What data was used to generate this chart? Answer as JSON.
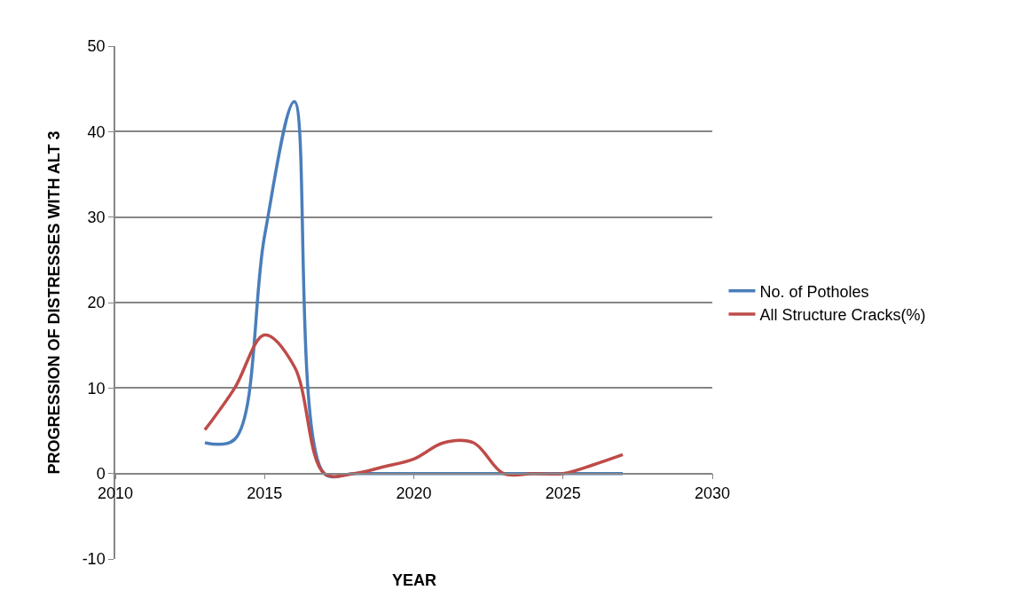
{
  "chart_data": {
    "type": "line",
    "xlabel": "YEAR",
    "ylabel": "PROGRESSION OF DISTRESSES WITH ALT 3",
    "x": [
      2013,
      2014,
      2015,
      2016,
      2017,
      2018,
      2019,
      2020,
      2021,
      2022,
      2023,
      2024,
      2025,
      2026,
      2027
    ],
    "series": [
      {
        "name": "No. of Potholes",
        "color": "#4a7ebb",
        "values": [
          3.6,
          4.0,
          27.8,
          43.5,
          0,
          0,
          0,
          0,
          0,
          0,
          0,
          0,
          0,
          0,
          0
        ]
      },
      {
        "name": "All Structure Cracks(%)",
        "color": "#be4b48",
        "values": [
          5.1,
          10.0,
          16.2,
          12.5,
          0,
          0,
          0.8,
          1.7,
          3.6,
          3.6,
          0,
          0,
          0,
          1.0,
          2.2
        ]
      }
    ],
    "xlim": [
      2010,
      2030
    ],
    "xticks": [
      2010,
      2015,
      2020,
      2025,
      2030
    ],
    "ylim": [
      -10,
      50
    ],
    "yticks": [
      -10,
      0,
      10,
      20,
      30,
      40,
      50
    ],
    "grid": "y",
    "legend": "right",
    "marker": "none",
    "line_style": "solid"
  }
}
